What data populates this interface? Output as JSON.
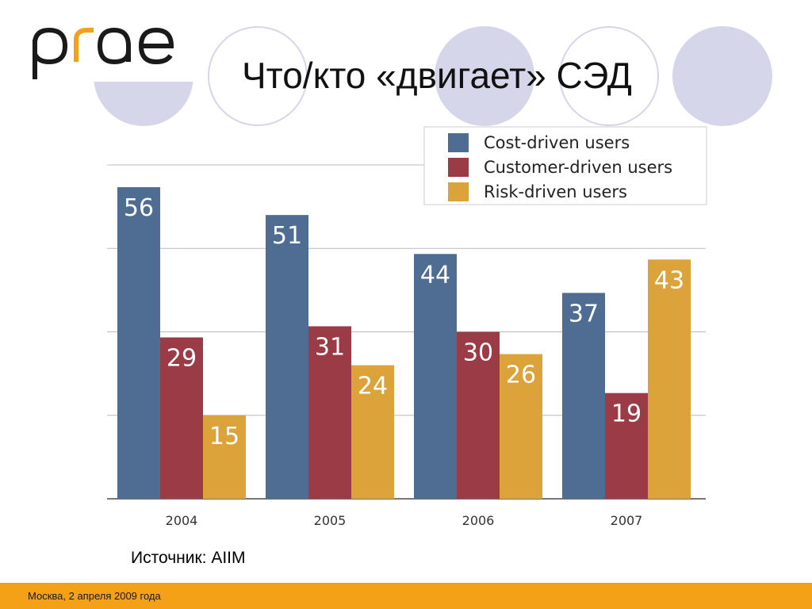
{
  "slide": {
    "logo_text": "prae",
    "title": "Что/кто «двигает» СЭД",
    "source": "Источник: AIIM",
    "footer": "Москва, 2 апреля 2009 года"
  },
  "colors": {
    "accent_orange": "#f5a118",
    "decor_circles": "#d6d6ea",
    "cost": "#4f6c92",
    "customer": "#9a3b46",
    "risk": "#dba33a"
  },
  "chart_data": {
    "type": "bar",
    "categories": [
      "2004",
      "2005",
      "2006",
      "2007"
    ],
    "series": [
      {
        "name": "Cost-driven users",
        "values": [
          56,
          51,
          44,
          37
        ]
      },
      {
        "name": "Customer-driven users",
        "values": [
          29,
          31,
          30,
          19
        ]
      },
      {
        "name": "Risk-driven users",
        "values": [
          15,
          24,
          26,
          43
        ]
      }
    ],
    "ylim": [
      0,
      60
    ],
    "grid": true,
    "legend": "top-right",
    "data_labels": true
  }
}
